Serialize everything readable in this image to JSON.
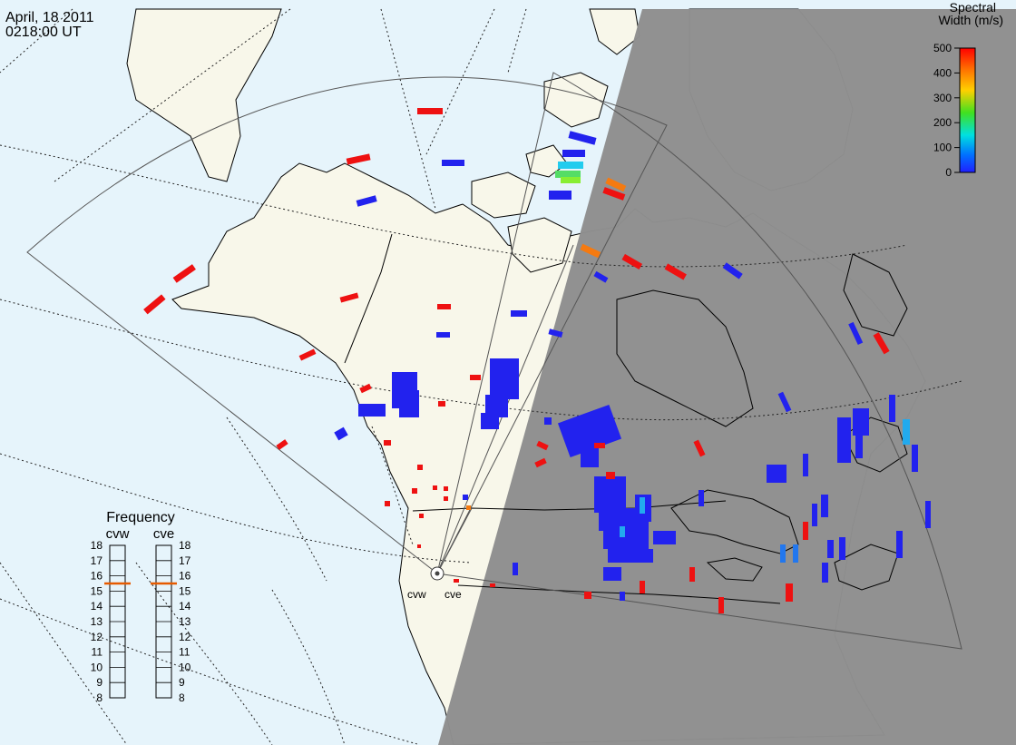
{
  "header": {
    "date": "April, 18 2011",
    "time": "0218:00 UT"
  },
  "colors": {
    "ocean": "#e6f4fb",
    "land": "#f8f7ea",
    "night": "#8f8f8f",
    "coast": "#000000",
    "grid": "#222222",
    "fov": "#555555"
  },
  "colorbar": {
    "title_line1": "Spectral",
    "title_line2": "Width (m/s)",
    "ticks": [
      "500",
      "400",
      "300",
      "200",
      "100",
      "0"
    ],
    "stops": [
      "#ff0000",
      "#ff8000",
      "#ffd000",
      "#40e020",
      "#00e0e0",
      "#0060ff",
      "#2020ff"
    ]
  },
  "frequency": {
    "title": "Frequency",
    "radars": [
      {
        "name": "cvw",
        "freq": 15.5
      },
      {
        "name": "cve",
        "freq": 15.5
      }
    ],
    "ticks": [
      "18",
      "17",
      "16",
      "15",
      "14",
      "13",
      "12",
      "11",
      "10",
      "9",
      "8"
    ],
    "range": [
      8,
      18
    ],
    "marker_color": "#e65a00"
  },
  "stations": [
    {
      "name": "cvw"
    },
    {
      "name": "cve"
    }
  ],
  "scatter_colors": {
    "blue": "#2222ee",
    "red": "#ee1111",
    "orange": "#f57a10",
    "cyan": "#22aaee",
    "green": "#33dd33"
  }
}
